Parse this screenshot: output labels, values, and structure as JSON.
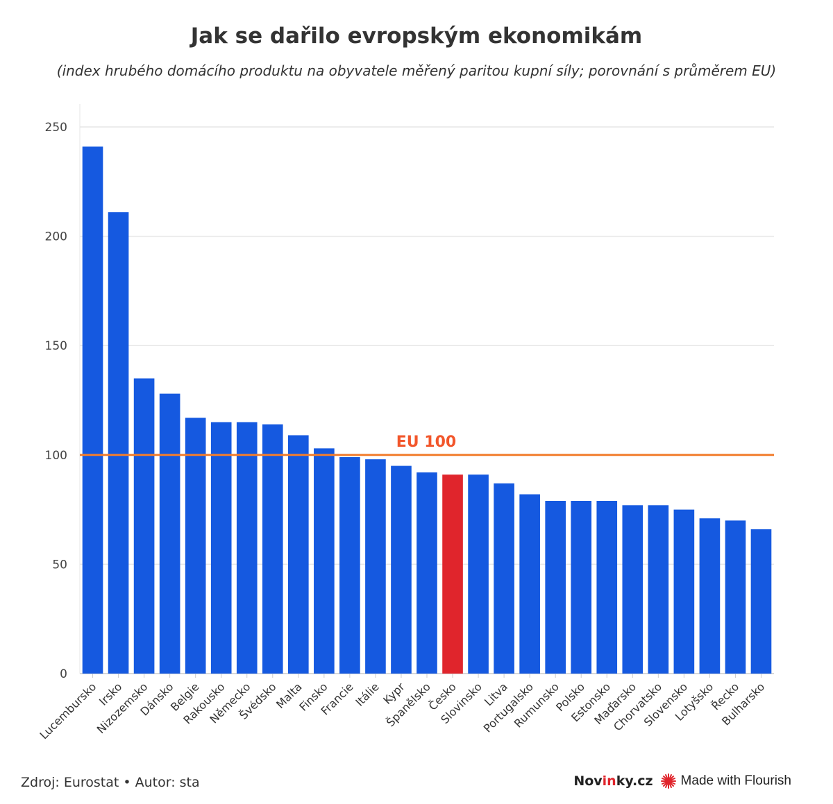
{
  "chart_data": {
    "type": "bar",
    "title": "Jak se dařilo evropským ekonomikám",
    "subtitle": "(index hrubého domácího produktu na obyvatele měřený paritou kupní síly; porovnání s průměrem EU)",
    "categories": [
      "Lucembursko",
      "Irsko",
      "Nizozemsko",
      "Dánsko",
      "Belgie",
      "Rakousko",
      "Německo",
      "Švédsko",
      "Malta",
      "Finsko",
      "Francie",
      "Itálie",
      "Kypr",
      "Španělsko",
      "Česko",
      "Slovinsko",
      "Litva",
      "Portugalsko",
      "Rumunsko",
      "Polsko",
      "Estonsko",
      "Maďarsko",
      "Chorvatsko",
      "Slovensko",
      "Lotyšsko",
      "Řecko",
      "Bulharsko"
    ],
    "values": [
      241,
      211,
      135,
      128,
      117,
      115,
      115,
      114,
      109,
      103,
      99,
      98,
      95,
      92,
      91,
      91,
      87,
      82,
      79,
      79,
      79,
      77,
      77,
      75,
      71,
      70,
      66
    ],
    "highlight_category": "Česko",
    "bar_color": "#1559e0",
    "highlight_color": "#e0252c",
    "ylim": [
      0,
      250
    ],
    "yticks": [
      0,
      50,
      100,
      150,
      200,
      250
    ],
    "grid": true,
    "reference_line": {
      "value": 100,
      "label": "EU 100",
      "color": "#f27d2e",
      "label_color": "#f2562b"
    }
  },
  "footer": {
    "source": "Zdroj: Eurostat • Autor: sta",
    "brand_prefix": "Nov",
    "brand_accent": "in",
    "brand_suffix": "ky.cz",
    "made_with": "Made with Flourish"
  }
}
